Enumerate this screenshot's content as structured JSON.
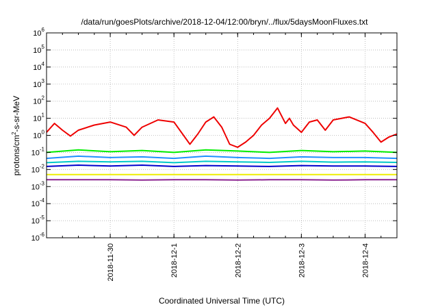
{
  "chart_data": {
    "type": "line",
    "title": "/data/run/goesPlots/archive/2018-12-04/12:00/bryn/../flux/5daysMoonFluxes.txt",
    "xlabel": "Coordinated Universal Time (UTC)",
    "ylabel": "protons/cm²-s-sr-MeV",
    "ylabel_parts": [
      "protons/cm",
      "2",
      "-s-sr-MeV"
    ],
    "y_scale": "log",
    "ylim": [
      1e-06,
      1000000.0
    ],
    "y_ticks": [
      {
        "base": "10",
        "exp": "6",
        "value": 1000000.0
      },
      {
        "base": "10",
        "exp": "5",
        "value": 100000.0
      },
      {
        "base": "10",
        "exp": "4",
        "value": 10000.0
      },
      {
        "base": "10",
        "exp": "3",
        "value": 1000.0
      },
      {
        "base": "10",
        "exp": "2",
        "value": 100.0
      },
      {
        "base": "10",
        "exp": "1",
        "value": 10.0
      },
      {
        "base": "10",
        "exp": "0",
        "value": 1.0
      },
      {
        "base": "10",
        "exp": "-1",
        "value": 0.1
      },
      {
        "base": "10",
        "exp": "-2",
        "value": 0.01
      },
      {
        "base": "10",
        "exp": "-3",
        "value": 0.001
      },
      {
        "base": "10",
        "exp": "-4",
        "value": 0.0001
      },
      {
        "base": "10",
        "exp": "-5",
        "value": 1e-05
      },
      {
        "base": "10",
        "exp": "-6",
        "value": 1e-06
      }
    ],
    "x_ticks": [
      "2018-11-30",
      "2018-12-1",
      "2018-12-2",
      "2018-12-3",
      "2018-12-4"
    ],
    "x_range": [
      "2018-11-29 00:00",
      "2018-12-04 12:00"
    ],
    "grid": true,
    "legend": "none",
    "series": [
      {
        "color": "#ee0000",
        "x": [
          "2018-11-29 00:00",
          "2018-11-29 03:00",
          "2018-11-29 06:00",
          "2018-11-29 09:00",
          "2018-11-29 12:00",
          "2018-11-29 18:00",
          "2018-11-30 00:00",
          "2018-11-30 06:00",
          "2018-11-30 09:00",
          "2018-11-30 12:00",
          "2018-11-30 18:00",
          "2018-12-01 00:00",
          "2018-12-01 06:00",
          "2018-12-01 09:00",
          "2018-12-01 12:00",
          "2018-12-01 15:00",
          "2018-12-01 18:00",
          "2018-12-01 21:00",
          "2018-12-02 00:00",
          "2018-12-02 03:00",
          "2018-12-02 06:00",
          "2018-12-02 09:00",
          "2018-12-02 12:00",
          "2018-12-02 15:00",
          "2018-12-02 18:00",
          "2018-12-02 19:30",
          "2018-12-02 21:00",
          "2018-12-03 00:00",
          "2018-12-03 03:00",
          "2018-12-03 06:00",
          "2018-12-03 09:00",
          "2018-12-03 12:00",
          "2018-12-03 18:00",
          "2018-12-04 00:00",
          "2018-12-04 03:00",
          "2018-12-04 06:00",
          "2018-12-04 09:00",
          "2018-12-04 12:00"
        ],
        "values": [
          1.5,
          5,
          2,
          0.9,
          2,
          4,
          6,
          3,
          1,
          3,
          8,
          6,
          0.3,
          1.2,
          6,
          12,
          3,
          0.3,
          0.2,
          0.4,
          1,
          4,
          10,
          40,
          5,
          10,
          4,
          1.5,
          6,
          8,
          2,
          8,
          12,
          5,
          1.5,
          0.4,
          0.8,
          1.2
        ]
      },
      {
        "color": "#00ee00",
        "x": [
          "2018-11-29 00:00",
          "2018-11-29 12:00",
          "2018-11-30 00:00",
          "2018-11-30 12:00",
          "2018-12-01 00:00",
          "2018-12-01 12:00",
          "2018-12-02 00:00",
          "2018-12-02 12:00",
          "2018-12-03 00:00",
          "2018-12-03 12:00",
          "2018-12-04 00:00",
          "2018-12-04 12:00"
        ],
        "values": [
          0.1,
          0.14,
          0.11,
          0.13,
          0.1,
          0.14,
          0.12,
          0.1,
          0.13,
          0.11,
          0.12,
          0.1
        ]
      },
      {
        "color": "#1e90ff",
        "x": [
          "2018-11-29 00:00",
          "2018-11-29 12:00",
          "2018-11-30 00:00",
          "2018-11-30 12:00",
          "2018-12-01 00:00",
          "2018-12-01 12:00",
          "2018-12-02 00:00",
          "2018-12-02 12:00",
          "2018-12-03 00:00",
          "2018-12-03 12:00",
          "2018-12-04 00:00",
          "2018-12-04 12:00"
        ],
        "values": [
          0.045,
          0.06,
          0.05,
          0.055,
          0.045,
          0.06,
          0.05,
          0.045,
          0.055,
          0.05,
          0.05,
          0.045
        ]
      },
      {
        "color": "#00c8c8",
        "x": [
          "2018-11-29 00:00",
          "2018-11-29 12:00",
          "2018-11-30 00:00",
          "2018-11-30 12:00",
          "2018-12-01 00:00",
          "2018-12-01 12:00",
          "2018-12-02 00:00",
          "2018-12-02 12:00",
          "2018-12-03 00:00",
          "2018-12-03 12:00",
          "2018-12-04 00:00",
          "2018-12-04 12:00"
        ],
        "values": [
          0.025,
          0.03,
          0.028,
          0.03,
          0.025,
          0.03,
          0.028,
          0.026,
          0.03,
          0.027,
          0.028,
          0.026
        ]
      },
      {
        "color": "#0000cc",
        "x": [
          "2018-11-29 00:00",
          "2018-11-29 12:00",
          "2018-11-30 00:00",
          "2018-11-30 12:00",
          "2018-12-01 00:00",
          "2018-12-01 12:00",
          "2018-12-02 00:00",
          "2018-12-02 12:00",
          "2018-12-03 00:00",
          "2018-12-03 12:00",
          "2018-12-04 00:00",
          "2018-12-04 12:00"
        ],
        "values": [
          0.015,
          0.018,
          0.016,
          0.018,
          0.015,
          0.017,
          0.016,
          0.015,
          0.017,
          0.016,
          0.016,
          0.015
        ]
      },
      {
        "color": "#eeee00",
        "x": [
          "2018-11-29 00:00",
          "2018-11-29 12:00",
          "2018-11-30 00:00",
          "2018-11-30 12:00",
          "2018-12-01 00:00",
          "2018-12-01 12:00",
          "2018-12-02 00:00",
          "2018-12-02 12:00",
          "2018-12-03 00:00",
          "2018-12-03 12:00",
          "2018-12-04 00:00",
          "2018-12-04 12:00"
        ],
        "values": [
          0.005,
          0.005,
          0.005,
          0.005,
          0.005,
          0.005,
          0.005,
          0.005,
          0.005,
          0.005,
          0.005,
          0.005
        ]
      },
      {
        "color": "#8b2290",
        "x": [
          "2018-11-29 00:00",
          "2018-11-29 12:00",
          "2018-11-30 00:00",
          "2018-11-30 12:00",
          "2018-12-01 00:00",
          "2018-12-01 12:00",
          "2018-12-02 00:00",
          "2018-12-02 12:00",
          "2018-12-03 00:00",
          "2018-12-03 12:00",
          "2018-12-04 00:00",
          "2018-12-04 12:00"
        ],
        "values": [
          0.0025,
          0.0025,
          0.0025,
          0.0024,
          0.0025,
          0.0025,
          0.0024,
          0.0025,
          0.0025,
          0.0024,
          0.0025,
          0.0025
        ]
      }
    ]
  }
}
